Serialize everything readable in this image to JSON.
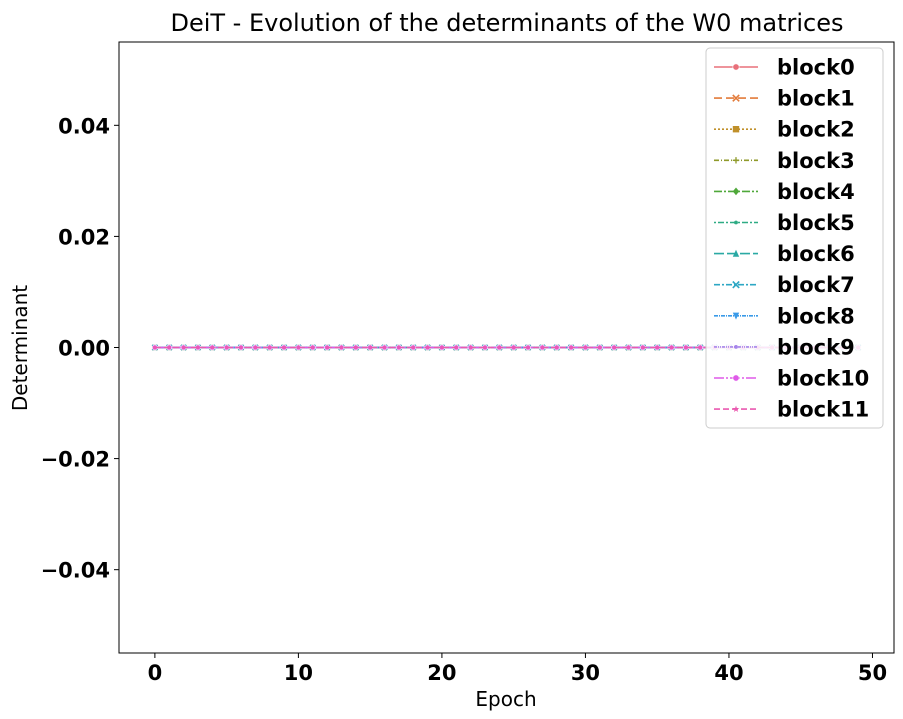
{
  "chart_data": {
    "type": "line",
    "title": "DeiT - Evolution of the determinants of the W0 matrices",
    "xlabel": "Epoch",
    "ylabel": "Determinant",
    "xlim": [
      -2.5,
      51.5
    ],
    "ylim": [
      -0.055,
      0.055
    ],
    "xticks": [
      0,
      10,
      20,
      30,
      40,
      50
    ],
    "xtick_labels": [
      "0",
      "10",
      "20",
      "30",
      "40",
      "50"
    ],
    "yticks": [
      -0.04,
      -0.02,
      0.0,
      0.02,
      0.04
    ],
    "ytick_labels": [
      "−0.04",
      "−0.02",
      "0.00",
      "0.02",
      "0.04"
    ],
    "grid": false,
    "legend_position": "top-right",
    "x": [
      0,
      1,
      2,
      3,
      4,
      5,
      6,
      7,
      8,
      9,
      10,
      11,
      12,
      13,
      14,
      15,
      16,
      17,
      18,
      19,
      20,
      21,
      22,
      23,
      24,
      25,
      26,
      27,
      28,
      29,
      30,
      31,
      32,
      33,
      34,
      35,
      36,
      37,
      38,
      39,
      40,
      41,
      42,
      43,
      44,
      45,
      46,
      47,
      48,
      49
    ],
    "series": [
      {
        "name": "block0",
        "color": "#e8707a",
        "dash": "",
        "marker": "circle",
        "values": [
          0,
          0,
          0,
          0,
          0,
          0,
          0,
          0,
          0,
          0,
          0,
          0,
          0,
          0,
          0,
          0,
          0,
          0,
          0,
          0,
          0,
          0,
          0,
          0,
          0,
          0,
          0,
          0,
          0,
          0,
          0,
          0,
          0,
          0,
          0,
          0,
          0,
          0,
          0,
          0,
          0,
          0,
          0,
          0,
          0,
          0,
          0,
          0,
          0,
          0
        ]
      },
      {
        "name": "block1",
        "color": "#e37b3a",
        "dash": "8,4",
        "marker": "x",
        "values": [
          0,
          0,
          0,
          0,
          0,
          0,
          0,
          0,
          0,
          0,
          0,
          0,
          0,
          0,
          0,
          0,
          0,
          0,
          0,
          0,
          0,
          0,
          0,
          0,
          0,
          0,
          0,
          0,
          0,
          0,
          0,
          0,
          0,
          0,
          0,
          0,
          0,
          0,
          0,
          0,
          0,
          0,
          0,
          0,
          0,
          0,
          0,
          0,
          0,
          0
        ]
      },
      {
        "name": "block2",
        "color": "#c0902a",
        "dash": "2,2",
        "marker": "square",
        "values": [
          0,
          0,
          0,
          0,
          0,
          0,
          0,
          0,
          0,
          0,
          0,
          0,
          0,
          0,
          0,
          0,
          0,
          0,
          0,
          0,
          0,
          0,
          0,
          0,
          0,
          0,
          0,
          0,
          0,
          0,
          0,
          0,
          0,
          0,
          0,
          0,
          0,
          0,
          0,
          0,
          0,
          0,
          0,
          0,
          0,
          0,
          0,
          0,
          0,
          0
        ]
      },
      {
        "name": "block3",
        "color": "#8f9a2a",
        "dash": "5,2,1,2",
        "marker": "plus",
        "values": [
          0,
          0,
          0,
          0,
          0,
          0,
          0,
          0,
          0,
          0,
          0,
          0,
          0,
          0,
          0,
          0,
          0,
          0,
          0,
          0,
          0,
          0,
          0,
          0,
          0,
          0,
          0,
          0,
          0,
          0,
          0,
          0,
          0,
          0,
          0,
          0,
          0,
          0,
          0,
          0,
          0,
          0,
          0,
          0,
          0,
          0,
          0,
          0,
          0,
          0
        ]
      },
      {
        "name": "block4",
        "color": "#4fa83a",
        "dash": "8,2,2,2",
        "marker": "diamond",
        "values": [
          0,
          0,
          0,
          0,
          0,
          0,
          0,
          0,
          0,
          0,
          0,
          0,
          0,
          0,
          0,
          0,
          0,
          0,
          0,
          0,
          0,
          0,
          0,
          0,
          0,
          0,
          0,
          0,
          0,
          0,
          0,
          0,
          0,
          0,
          0,
          0,
          0,
          0,
          0,
          0,
          0,
          0,
          0,
          0,
          0,
          0,
          0,
          0,
          0,
          0
        ]
      },
      {
        "name": "block5",
        "color": "#2eab84",
        "dash": "2,2,6,2",
        "marker": "dot",
        "values": [
          0,
          0,
          0,
          0,
          0,
          0,
          0,
          0,
          0,
          0,
          0,
          0,
          0,
          0,
          0,
          0,
          0,
          0,
          0,
          0,
          0,
          0,
          0,
          0,
          0,
          0,
          0,
          0,
          0,
          0,
          0,
          0,
          0,
          0,
          0,
          0,
          0,
          0,
          0,
          0,
          0,
          0,
          0,
          0,
          0,
          0,
          0,
          0,
          0,
          0
        ]
      },
      {
        "name": "block6",
        "color": "#2aa9a4",
        "dash": "10,3",
        "marker": "triangle",
        "values": [
          0,
          0,
          0,
          0,
          0,
          0,
          0,
          0,
          0,
          0,
          0,
          0,
          0,
          0,
          0,
          0,
          0,
          0,
          0,
          0,
          0,
          0,
          0,
          0,
          0,
          0,
          0,
          0,
          0,
          0,
          0,
          0,
          0,
          0,
          0,
          0,
          0,
          0,
          0,
          0,
          0,
          0,
          0,
          0,
          0,
          0,
          0,
          0,
          0,
          0
        ]
      },
      {
        "name": "block7",
        "color": "#2ea7c4",
        "dash": "6,2,2,2",
        "marker": "x",
        "values": [
          0,
          0,
          0,
          0,
          0,
          0,
          0,
          0,
          0,
          0,
          0,
          0,
          0,
          0,
          0,
          0,
          0,
          0,
          0,
          0,
          0,
          0,
          0,
          0,
          0,
          0,
          0,
          0,
          0,
          0,
          0,
          0,
          0,
          0,
          0,
          0,
          0,
          0,
          0,
          0,
          0,
          0,
          0,
          0,
          0,
          0,
          0,
          0,
          0,
          0
        ]
      },
      {
        "name": "block8",
        "color": "#3a9ae8",
        "dash": "4,1,1,1",
        "marker": "triangle-down",
        "values": [
          0,
          0,
          0,
          0,
          0,
          0,
          0,
          0,
          0,
          0,
          0,
          0,
          0,
          0,
          0,
          0,
          0,
          0,
          0,
          0,
          0,
          0,
          0,
          0,
          0,
          0,
          0,
          0,
          0,
          0,
          0,
          0,
          0,
          0,
          0,
          0,
          0,
          0,
          0,
          0,
          0,
          0,
          0,
          0,
          0,
          0,
          0,
          0,
          0,
          0
        ]
      },
      {
        "name": "block9",
        "color": "#a585ea",
        "dash": "3,1,1,1,1,1",
        "marker": "dot",
        "values": [
          0,
          0,
          0,
          0,
          0,
          0,
          0,
          0,
          0,
          0,
          0,
          0,
          0,
          0,
          0,
          0,
          0,
          0,
          0,
          0,
          0,
          0,
          0,
          0,
          0,
          0,
          0,
          0,
          0,
          0,
          0,
          0,
          0,
          0,
          0,
          0,
          0,
          0,
          0,
          0,
          0,
          0,
          0,
          0,
          0,
          0,
          0,
          0,
          0,
          0
        ]
      },
      {
        "name": "block10",
        "color": "#df5ae8",
        "dash": "10,2,2,2",
        "marker": "circle",
        "values": [
          0,
          0,
          0,
          0,
          0,
          0,
          0,
          0,
          0,
          0,
          0,
          0,
          0,
          0,
          0,
          0,
          0,
          0,
          0,
          0,
          0,
          0,
          0,
          0,
          0,
          0,
          0,
          0,
          0,
          0,
          0,
          0,
          0,
          0,
          0,
          0,
          0,
          0,
          0,
          0,
          0,
          0,
          0,
          0,
          0,
          0,
          0,
          0,
          0,
          0
        ]
      },
      {
        "name": "block11",
        "color": "#ea5ab0",
        "dash": "6,3",
        "marker": "star",
        "values": [
          0,
          0,
          0,
          0,
          0,
          0,
          0,
          0,
          0,
          0,
          0,
          0,
          0,
          0,
          0,
          0,
          0,
          0,
          0,
          0,
          0,
          0,
          0,
          0,
          0,
          0,
          0,
          0,
          0,
          0,
          0,
          0,
          0,
          0,
          0,
          0,
          0,
          0,
          0,
          0,
          0,
          0,
          0,
          0,
          0,
          0,
          0,
          0,
          0,
          0
        ]
      }
    ]
  }
}
